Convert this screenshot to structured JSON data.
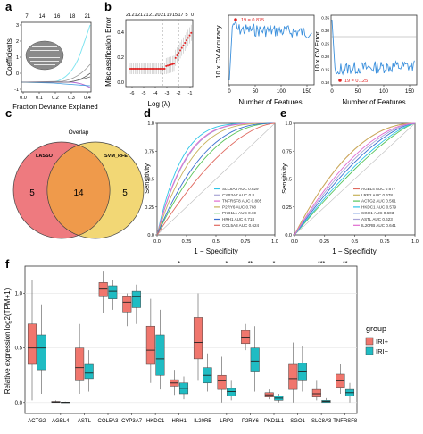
{
  "figure": {
    "panel_a": {
      "letter": "a",
      "top_ticks": [
        "7",
        "14",
        "16",
        "18",
        "21"
      ],
      "ylabel": "Coefficients",
      "xlabel": "Fraction Deviance Explained",
      "yticks": [
        "-1",
        "0",
        "1",
        "2",
        "3"
      ],
      "xticks": [
        "0.0",
        "0.1",
        "0.2",
        "0.3",
        "0.4"
      ]
    },
    "panel_b": {
      "letter": "b",
      "top_ticks": [
        "21",
        "21",
        "21",
        "21",
        "21",
        "20",
        "21",
        "19",
        "15",
        "17",
        "5",
        "0"
      ],
      "ylabel": "Misclassification Error",
      "xlabel": "Log (λ)",
      "xticks": [
        "-6",
        "-5",
        "-4",
        "-3",
        "-2",
        "-1"
      ],
      "yticks": [
        "0.0",
        "0.2",
        "0.4"
      ]
    },
    "panel_b2": {
      "ylabel": "10 x CV Accuracy",
      "xlabel": "Number of Features",
      "xticks": [
        "0",
        "50",
        "100",
        "150"
      ],
      "annotation": "19 = 0.875"
    },
    "panel_b3": {
      "ylabel": "10 x CV Error",
      "xlabel": "Number of Features",
      "xticks": [
        "0",
        "50",
        "100",
        "150"
      ],
      "yticks": [
        "0.10",
        "0.15",
        "0.20",
        "0.25",
        "0.30",
        "0.35"
      ],
      "annotation": "19 = 0.125"
    },
    "panel_c": {
      "letter": "c",
      "title": "Overlap",
      "left_label": "LASSO",
      "right_label": "SVM_RFE",
      "left_count": "5",
      "center_count": "14",
      "right_count": "5"
    },
    "panel_d": {
      "letter": "d",
      "ylabel": "Sensitivity",
      "xlabel": "1 − Specificity",
      "ticks": [
        "0.0",
        "0.25",
        "0.5",
        "0.75",
        "1.0"
      ],
      "legend": [
        {
          "label": "SLC8A3 AUC 0.829",
          "color": "#2ec5e8"
        },
        {
          "label": "CYP3A7 AUC 0.8",
          "color": "#a9a5d6"
        },
        {
          "label": "TNFRSF8 AUC 0.805",
          "color": "#e06bd0"
        },
        {
          "label": "P2RY6 AUC 0.768",
          "color": "#c7b25b"
        },
        {
          "label": "PKD1L1 AUC 0.69",
          "color": "#59c45a"
        },
        {
          "label": "HRH1 AUC 0.718",
          "color": "#3a6fd0"
        },
        {
          "label": "COL5A3 AUC 0.624",
          "color": "#e06a60"
        }
      ]
    },
    "panel_e": {
      "letter": "e",
      "ylabel": "Sensitivity",
      "xlabel": "1 − Specificity",
      "ticks": [
        "0.0",
        "0.25",
        "0.5",
        "0.75",
        "1.0"
      ],
      "legend": [
        {
          "label": "AGBL4 AUC 0.677",
          "color": "#e06a60"
        },
        {
          "label": "LRP2 AUC 0.678",
          "color": "#c7b25b"
        },
        {
          "label": "ACTG2 AUC 0.561",
          "color": "#59c45a"
        },
        {
          "label": "HKDC1 AUC 0.579",
          "color": "#2ec5e8"
        },
        {
          "label": "SGO1 AUC 0.603",
          "color": "#3a6fd0"
        },
        {
          "label": "ASTL AUC 0.623",
          "color": "#a9a5d6"
        },
        {
          "label": "IL20RB AUC 0.641",
          "color": "#e06bd0"
        }
      ]
    },
    "panel_f": {
      "letter": "f",
      "ylabel": "Relative expression log2(TPM+1)",
      "yticks": [
        "0.0",
        "0.5",
        "1.0"
      ],
      "genes": [
        "ACTG2",
        "AGBL4",
        "ASTL",
        "COL5A3",
        "CYP3A7",
        "HKDC1",
        "HRH1",
        "IL20RB",
        "LRP2",
        "P2RY6",
        "PKD1L1",
        "SGO1",
        "SLC8A3",
        "TNFRSF8"
      ],
      "significance": [
        "",
        "",
        "",
        "",
        "",
        "",
        "*",
        "",
        "*",
        "**",
        "*",
        "",
        "***",
        "**"
      ],
      "legend_title": "group",
      "groups": [
        {
          "label": "IRI+",
          "color": "#f0766d"
        },
        {
          "label": "IRI−",
          "color": "#1fbcc3"
        }
      ]
    }
  },
  "chart_data": [
    {
      "type": "box",
      "panel": "f",
      "ylabel": "Relative expression log2(TPM+1)",
      "ylim": [
        -0.1,
        1.25
      ],
      "categories": [
        "ACTG2",
        "AGBL4",
        "ASTL",
        "COL5A3",
        "CYP3A7",
        "HKDC1",
        "HRH1",
        "IL20RB",
        "LRP2",
        "P2RY6",
        "PKD1L1",
        "SGO1",
        "SLC8A3",
        "TNFRSF8"
      ],
      "series": [
        {
          "name": "IRI+",
          "boxes": [
            {
              "lo": 0.02,
              "q1": 0.35,
              "med": 0.5,
              "q3": 0.72,
              "hi": 1.12
            },
            {
              "lo": 0.0,
              "q1": 0.0,
              "med": 0.005,
              "q3": 0.01,
              "hi": 0.02
            },
            {
              "lo": 0.08,
              "q1": 0.2,
              "med": 0.32,
              "q3": 0.5,
              "hi": 0.72
            },
            {
              "lo": 0.82,
              "q1": 0.97,
              "med": 1.04,
              "q3": 1.1,
              "hi": 1.2
            },
            {
              "lo": 0.7,
              "q1": 0.83,
              "med": 0.92,
              "q3": 0.97,
              "hi": 1.0
            },
            {
              "lo": 0.18,
              "q1": 0.35,
              "med": 0.48,
              "q3": 0.7,
              "hi": 0.95
            },
            {
              "lo": 0.07,
              "q1": 0.15,
              "med": 0.18,
              "q3": 0.21,
              "hi": 0.3
            },
            {
              "lo": 0.2,
              "q1": 0.4,
              "med": 0.55,
              "q3": 0.78,
              "hi": 1.0
            },
            {
              "lo": 0.0,
              "q1": 0.12,
              "med": 0.2,
              "q3": 0.25,
              "hi": 0.42
            },
            {
              "lo": 0.48,
              "q1": 0.54,
              "med": 0.6,
              "q3": 0.66,
              "hi": 0.72
            },
            {
              "lo": 0.03,
              "q1": 0.05,
              "med": 0.07,
              "q3": 0.09,
              "hi": 0.12
            },
            {
              "lo": 0.0,
              "q1": 0.12,
              "med": 0.22,
              "q3": 0.35,
              "hi": 0.55
            },
            {
              "lo": 0.02,
              "q1": 0.05,
              "med": 0.08,
              "q3": 0.12,
              "hi": 0.2
            },
            {
              "lo": 0.08,
              "q1": 0.14,
              "med": 0.2,
              "q3": 0.26,
              "hi": 0.35
            }
          ]
        },
        {
          "name": "IRI−",
          "boxes": [
            {
              "lo": 0.08,
              "q1": 0.3,
              "med": 0.5,
              "q3": 0.62,
              "hi": 0.9
            },
            {
              "lo": 0.0,
              "q1": 0.0,
              "med": 0.002,
              "q3": 0.004,
              "hi": 0.008
            },
            {
              "lo": 0.1,
              "q1": 0.22,
              "med": 0.27,
              "q3": 0.35,
              "hi": 0.48
            },
            {
              "lo": 0.85,
              "q1": 0.95,
              "med": 1.02,
              "q3": 1.07,
              "hi": 1.12
            },
            {
              "lo": 0.72,
              "q1": 0.87,
              "med": 0.97,
              "q3": 1.02,
              "hi": 1.08
            },
            {
              "lo": 0.12,
              "q1": 0.25,
              "med": 0.4,
              "q3": 0.62,
              "hi": 0.85
            },
            {
              "lo": 0.03,
              "q1": 0.08,
              "med": 0.13,
              "q3": 0.18,
              "hi": 0.24
            },
            {
              "lo": 0.1,
              "q1": 0.18,
              "med": 0.25,
              "q3": 0.32,
              "hi": 0.45
            },
            {
              "lo": 0.02,
              "q1": 0.06,
              "med": 0.1,
              "q3": 0.13,
              "hi": 0.2
            },
            {
              "lo": 0.1,
              "q1": 0.28,
              "med": 0.38,
              "q3": 0.5,
              "hi": 0.7
            },
            {
              "lo": 0.0,
              "q1": 0.02,
              "med": 0.04,
              "q3": 0.06,
              "hi": 0.08
            },
            {
              "lo": 0.1,
              "q1": 0.2,
              "med": 0.28,
              "q3": 0.36,
              "hi": 0.52
            },
            {
              "lo": 0.0,
              "q1": 0.0,
              "med": 0.01,
              "q3": 0.02,
              "hi": 0.04
            },
            {
              "lo": 0.0,
              "q1": 0.06,
              "med": 0.09,
              "q3": 0.12,
              "hi": 0.18
            }
          ]
        }
      ]
    },
    {
      "type": "line",
      "panel": "d",
      "xlabel": "1 − Specificity",
      "ylabel": "Sensitivity",
      "xlim": [
        0,
        1
      ],
      "ylim": [
        0,
        1
      ],
      "series": [
        {
          "name": "SLC8A3 AUC 0.829",
          "auc": 0.829
        },
        {
          "name": "CYP3A7 AUC 0.8",
          "auc": 0.8
        },
        {
          "name": "TNFRSF8 AUC 0.805",
          "auc": 0.805
        },
        {
          "name": "P2RY6 AUC 0.768",
          "auc": 0.768
        },
        {
          "name": "PKD1L1 AUC 0.69",
          "auc": 0.69
        },
        {
          "name": "HRH1 AUC 0.718",
          "auc": 0.718
        },
        {
          "name": "COL5A3 AUC 0.624",
          "auc": 0.624
        }
      ]
    },
    {
      "type": "line",
      "panel": "e",
      "xlabel": "1 − Specificity",
      "ylabel": "Sensitivity",
      "xlim": [
        0,
        1
      ],
      "ylim": [
        0,
        1
      ],
      "series": [
        {
          "name": "AGBL4 AUC 0.677",
          "auc": 0.677
        },
        {
          "name": "LRP2 AUC 0.678",
          "auc": 0.678
        },
        {
          "name": "ACTG2 AUC 0.561",
          "auc": 0.561
        },
        {
          "name": "HKDC1 AUC 0.579",
          "auc": 0.579
        },
        {
          "name": "SGO1 AUC 0.603",
          "auc": 0.603
        },
        {
          "name": "ASTL AUC 0.623",
          "auc": 0.623
        },
        {
          "name": "IL20RB AUC 0.641",
          "auc": 0.641
        }
      ]
    },
    {
      "type": "line",
      "panel": "b3",
      "xlabel": "Number of Features",
      "ylabel": "10 x CV Error",
      "xlim": [
        0,
        160
      ],
      "ylim": [
        0.1,
        0.35
      ],
      "min_point": {
        "x": 19,
        "y": 0.125
      }
    },
    {
      "type": "line",
      "panel": "b2",
      "xlabel": "Number of Features",
      "ylabel": "10 x CV Accuracy",
      "xlim": [
        0,
        160
      ],
      "max_point": {
        "x": 19,
        "y": 0.875
      }
    }
  ]
}
